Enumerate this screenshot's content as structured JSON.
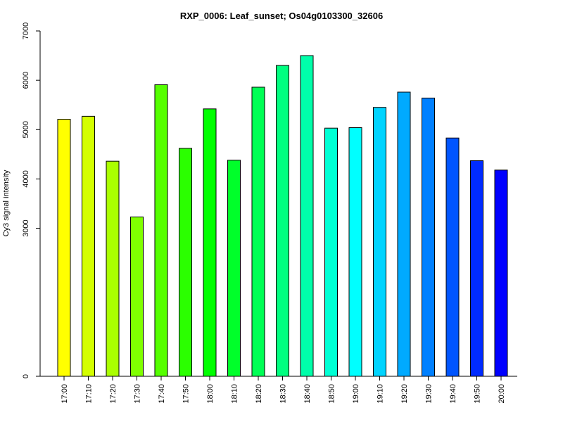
{
  "chart_data": {
    "type": "bar",
    "title": "RXP_0006: Leaf_sunset; Os04g0103300_32606",
    "xlabel": "",
    "ylabel": "Cy3 signal intensity",
    "ylim": [
      0,
      7000
    ],
    "yticks": [
      0,
      3000,
      4000,
      5000,
      6000,
      7000
    ],
    "grid": false,
    "legend": "none",
    "categories": [
      "17:00",
      "17:10",
      "17:20",
      "17:30",
      "17:40",
      "17:50",
      "18:00",
      "18:10",
      "18:20",
      "18:30",
      "18:40",
      "18:50",
      "19:00",
      "19:10",
      "19:20",
      "19:30",
      "19:40",
      "19:50",
      "20:00"
    ],
    "values": [
      5210,
      5270,
      4360,
      3230,
      5910,
      4620,
      5420,
      4380,
      5860,
      6300,
      6500,
      5030,
      5040,
      5450,
      5760,
      5640,
      4830,
      4370,
      4180
    ],
    "colors": [
      "#FFFF00",
      "#D4FF00",
      "#AAFF00",
      "#80FF00",
      "#55FF00",
      "#2BFF00",
      "#00FF00",
      "#00FF2A",
      "#00FF55",
      "#00FF80",
      "#00FFAA",
      "#00FFD4",
      "#00FFFF",
      "#00D4FF",
      "#00AAFF",
      "#0080FF",
      "#0055FF",
      "#002BFF",
      "#0000FF"
    ]
  }
}
